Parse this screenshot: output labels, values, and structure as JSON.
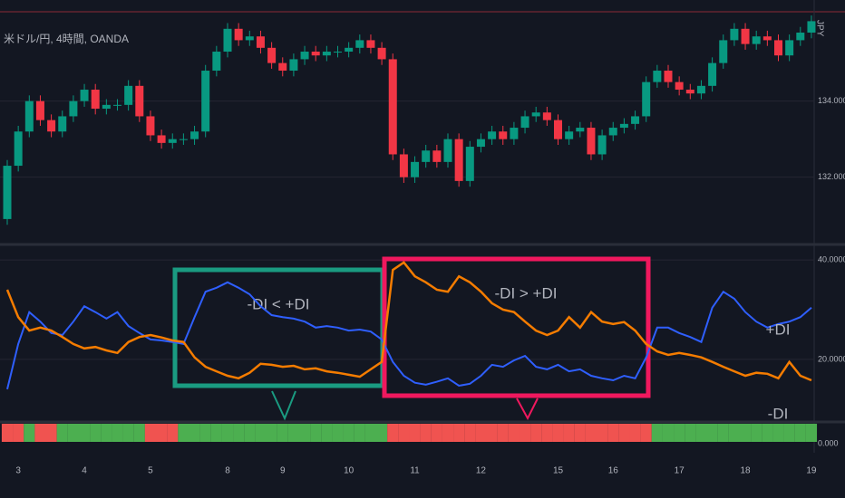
{
  "chart_data": [
    {
      "type": "candlestick",
      "title": "米ドル/円, 4時間, OANDA",
      "currency": "JPY",
      "categories": [
        null,
        "3",
        null,
        null,
        null,
        null,
        null,
        "4",
        null,
        null,
        null,
        null,
        null,
        "5",
        null,
        null,
        null,
        null,
        null,
        null,
        "8",
        null,
        null,
        null,
        null,
        "9",
        null,
        null,
        null,
        null,
        null,
        "10",
        null,
        null,
        null,
        null,
        null,
        "11",
        null,
        null,
        null,
        null,
        null,
        "12",
        null,
        null,
        null,
        null,
        null,
        null,
        "15",
        null,
        null,
        null,
        null,
        "16",
        null,
        null,
        null,
        null,
        null,
        "17",
        null,
        null,
        null,
        null,
        null,
        "18",
        null,
        null,
        null,
        null,
        null,
        "19"
      ],
      "open": [
        130.9,
        132.3,
        133.2,
        134.0,
        133.5,
        133.2,
        133.6,
        134.0,
        134.3,
        133.8,
        133.9,
        133.9,
        134.4,
        133.6,
        133.1,
        132.9,
        133.0,
        133.0,
        133.2,
        134.8,
        135.3,
        135.9,
        135.6,
        135.7,
        135.4,
        135.0,
        134.8,
        135.1,
        135.3,
        135.2,
        135.3,
        135.3,
        135.4,
        135.6,
        135.4,
        135.1,
        132.6,
        132.0,
        132.4,
        132.7,
        132.4,
        133.0,
        131.9,
        132.8,
        133.0,
        133.2,
        133.0,
        133.3,
        133.6,
        133.7,
        133.5,
        133.0,
        133.2,
        133.3,
        132.6,
        133.1,
        133.3,
        133.4,
        133.6,
        134.5,
        134.8,
        134.5,
        134.3,
        134.2,
        134.4,
        135.0,
        135.6,
        135.9,
        135.5,
        135.7,
        135.6,
        135.2,
        135.6,
        135.8
      ],
      "high": [
        132.45,
        133.35,
        134.15,
        134.15,
        133.65,
        133.75,
        134.15,
        134.45,
        134.45,
        134.05,
        134.05,
        134.55,
        134.55,
        133.75,
        133.25,
        133.15,
        133.15,
        133.35,
        134.95,
        135.45,
        136.05,
        136.05,
        135.85,
        135.85,
        135.55,
        135.15,
        135.25,
        135.45,
        135.45,
        135.45,
        135.45,
        135.55,
        135.75,
        135.75,
        135.55,
        135.25,
        132.75,
        132.55,
        132.85,
        132.85,
        133.15,
        133.15,
        132.95,
        133.15,
        133.35,
        133.35,
        133.45,
        133.75,
        133.85,
        133.85,
        133.65,
        133.35,
        133.45,
        133.45,
        133.25,
        133.45,
        133.55,
        133.75,
        134.65,
        134.95,
        134.95,
        134.65,
        134.45,
        134.55,
        135.15,
        135.75,
        136.05,
        136.05,
        135.85,
        135.85,
        135.75,
        135.75,
        135.95,
        136.25
      ],
      "low": [
        130.75,
        132.15,
        133.05,
        133.35,
        133.05,
        133.05,
        133.45,
        133.85,
        133.65,
        133.65,
        133.75,
        133.75,
        133.45,
        132.95,
        132.75,
        132.75,
        132.85,
        132.85,
        133.05,
        134.65,
        135.15,
        135.45,
        135.45,
        135.25,
        134.85,
        134.65,
        134.65,
        134.95,
        135.05,
        135.05,
        135.15,
        135.15,
        135.25,
        135.25,
        134.95,
        132.45,
        131.85,
        131.85,
        132.25,
        132.25,
        132.25,
        131.75,
        131.75,
        132.65,
        132.85,
        132.85,
        132.85,
        133.15,
        133.45,
        133.35,
        132.85,
        132.85,
        133.05,
        132.45,
        132.45,
        132.95,
        133.15,
        133.25,
        133.45,
        134.35,
        134.35,
        134.15,
        134.05,
        134.05,
        134.25,
        134.85,
        135.45,
        135.35,
        135.35,
        135.45,
        135.05,
        135.05,
        135.45,
        135.65
      ],
      "close": [
        132.3,
        133.2,
        134.0,
        133.5,
        133.2,
        133.6,
        134.0,
        134.3,
        133.8,
        133.9,
        133.9,
        134.4,
        133.6,
        133.1,
        132.9,
        133.0,
        133.0,
        133.2,
        134.8,
        135.3,
        135.9,
        135.6,
        135.7,
        135.4,
        135.0,
        134.8,
        135.1,
        135.3,
        135.2,
        135.3,
        135.3,
        135.4,
        135.6,
        135.4,
        135.1,
        132.6,
        132.0,
        132.4,
        132.7,
        132.4,
        133.0,
        131.9,
        132.8,
        133.0,
        133.2,
        133.0,
        133.3,
        133.6,
        133.7,
        133.5,
        133.0,
        133.2,
        133.3,
        132.6,
        133.1,
        133.3,
        133.4,
        133.6,
        134.5,
        134.8,
        134.5,
        134.3,
        134.2,
        134.4,
        135.0,
        135.6,
        135.9,
        135.5,
        135.7,
        135.6,
        135.2,
        135.6,
        135.8,
        136.1
      ],
      "colors": {
        "up": "#089981",
        "down": "#f23645"
      },
      "ylim": [
        130.35,
        136.3
      ],
      "yticks": [
        {
          "value": 132,
          "label": "132.000"
        },
        {
          "value": 134,
          "label": "134.000"
        }
      ],
      "grid": true
    },
    {
      "type": "line",
      "series": [
        {
          "name": "+DI",
          "color": "#2f5fff",
          "values": [
            14.0,
            23.1,
            29.5,
            27.6,
            25.3,
            24.9,
            27.6,
            30.7,
            29.5,
            28.2,
            29.5,
            26.7,
            25.3,
            24.0,
            23.8,
            23.5,
            23.1,
            28.5,
            33.6,
            34.4,
            35.5,
            34.4,
            33.1,
            30.7,
            28.9,
            28.5,
            28.2,
            27.6,
            26.4,
            26.7,
            26.4,
            25.8,
            26.0,
            25.6,
            24.0,
            19.5,
            16.7,
            15.3,
            14.9,
            15.5,
            16.2,
            14.7,
            15.1,
            16.7,
            18.9,
            18.5,
            19.8,
            20.7,
            18.5,
            18.0,
            18.9,
            17.6,
            18.0,
            16.7,
            16.2,
            15.8,
            16.7,
            16.2,
            20.4,
            26.4,
            26.4,
            25.3,
            24.5,
            23.5,
            30.4,
            33.6,
            32.2,
            29.5,
            27.6,
            26.4,
            27.1,
            27.6,
            28.5,
            30.4
          ]
        },
        {
          "name": "-DI",
          "color": "#f57c00",
          "values": [
            34.0,
            28.5,
            25.8,
            26.4,
            25.8,
            24.5,
            23.1,
            22.2,
            22.5,
            21.8,
            21.3,
            23.5,
            24.5,
            24.9,
            24.4,
            23.8,
            23.5,
            20.4,
            18.5,
            17.6,
            16.7,
            16.2,
            17.3,
            19.1,
            18.9,
            18.5,
            18.7,
            18.0,
            18.2,
            17.6,
            17.3,
            16.9,
            16.5,
            18.0,
            19.5,
            38.0,
            39.5,
            36.7,
            35.5,
            34.0,
            33.6,
            36.7,
            35.5,
            33.6,
            31.3,
            30.0,
            29.5,
            27.6,
            25.8,
            24.9,
            25.8,
            28.5,
            26.4,
            29.5,
            27.6,
            27.1,
            27.5,
            25.8,
            23.1,
            21.6,
            20.9,
            21.3,
            20.9,
            20.4,
            19.5,
            18.5,
            17.6,
            16.7,
            17.3,
            17.1,
            16.2,
            19.5,
            16.7,
            15.8
          ]
        }
      ],
      "annotations": [
        {
          "text": "-DI < +DI",
          "color": "#1a9b81"
        },
        {
          "text": "-DI > +DI",
          "color": "#f0185e"
        }
      ],
      "ylim": [
        7.6,
        42.2
      ],
      "yticks": [
        {
          "value": 20,
          "label": "20.0000"
        },
        {
          "value": 40,
          "label": "40.0000"
        }
      ],
      "grid": true
    },
    {
      "type": "bar",
      "values": [
        -1,
        -1,
        1,
        -1,
        -1,
        1,
        1,
        1,
        1,
        1,
        1,
        1,
        1,
        -1,
        -1,
        -1,
        1,
        1,
        1,
        1,
        1,
        1,
        1,
        1,
        1,
        1,
        1,
        1,
        1,
        1,
        1,
        1,
        1,
        1,
        1,
        -1,
        -1,
        -1,
        -1,
        -1,
        -1,
        -1,
        -1,
        -1,
        -1,
        -1,
        -1,
        -1,
        -1,
        -1,
        -1,
        -1,
        -1,
        -1,
        -1,
        -1,
        -1,
        -1,
        -1,
        1,
        1,
        1,
        1,
        1,
        1,
        1,
        1,
        1,
        1,
        1,
        1,
        1,
        1,
        1
      ],
      "colors": {
        "up": "#4caf50",
        "down": "#f05350"
      },
      "ylim": [
        -1,
        1
      ],
      "yticks": [
        {
          "value": 0,
          "label": "0.000"
        }
      ]
    }
  ]
}
